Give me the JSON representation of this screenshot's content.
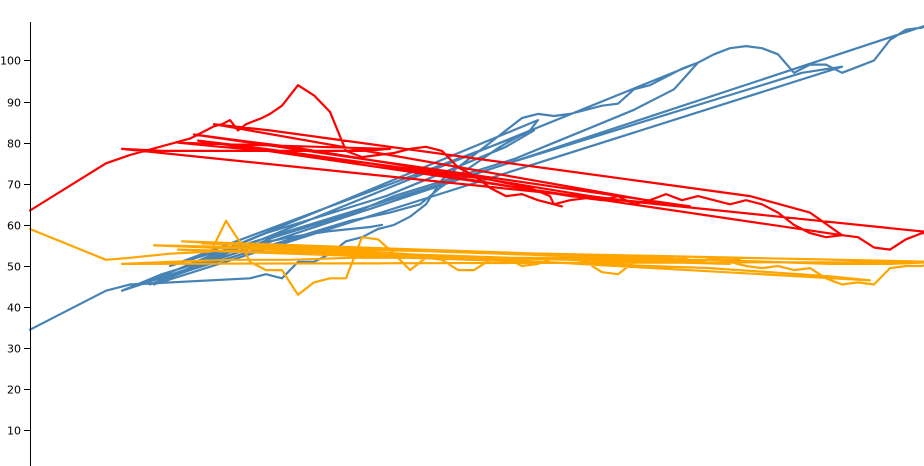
{
  "chart_data": {
    "type": "line",
    "title": "",
    "xlabel": "",
    "ylabel": "",
    "ylim": [
      0,
      110
    ],
    "yticks": [
      10,
      20,
      30,
      40,
      50,
      60,
      70,
      80,
      90,
      100
    ],
    "grid": false,
    "legend": "none",
    "series": [
      {
        "color": "#4682b4",
        "points": [
          [
            0,
            34.5
          ],
          [
            76,
            44
          ],
          [
            100,
            45.5
          ],
          [
            220,
            47
          ],
          [
            236,
            48
          ],
          [
            252,
            47
          ],
          [
            268,
            51
          ],
          [
            284,
            51
          ],
          [
            300,
            53
          ],
          [
            316,
            56
          ],
          [
            332,
            57
          ],
          [
            348,
            59
          ],
          [
            364,
            60
          ],
          [
            380,
            62
          ],
          [
            396,
            65
          ],
          [
            412,
            71
          ],
          [
            428,
            74
          ],
          [
            444,
            77
          ],
          [
            460,
            80
          ],
          [
            476,
            83
          ],
          [
            492,
            86
          ],
          [
            508,
            87
          ],
          [
            524,
            86.5
          ],
          [
            540,
            87
          ],
          [
            556,
            88
          ],
          [
            572,
            89
          ],
          [
            588,
            89.5
          ],
          [
            604,
            93
          ],
          [
            620,
            94
          ],
          [
            636,
            96
          ],
          [
            652,
            98
          ],
          [
            668,
            99.5
          ],
          [
            684,
            101.5
          ],
          [
            700,
            103
          ],
          [
            716,
            103.5
          ],
          [
            732,
            103
          ],
          [
            748,
            101.5
          ],
          [
            764,
            97
          ],
          [
            780,
            99
          ],
          [
            796,
            99
          ],
          [
            812,
            97
          ],
          [
            828,
            98.5
          ],
          [
            844,
            100
          ],
          [
            860,
            105
          ],
          [
            876,
            107.5
          ],
          [
            892,
            108
          ],
          [
            908,
            109.5
          ],
          [
            92,
            44
          ],
          [
            132,
            48
          ],
          [
            172,
            51
          ],
          [
            212,
            55
          ],
          [
            252,
            58
          ],
          [
            292,
            61
          ],
          [
            332,
            64
          ],
          [
            372,
            67
          ],
          [
            412,
            70
          ],
          [
            452,
            73
          ],
          [
            492,
            76
          ],
          [
            532,
            79
          ],
          [
            572,
            82
          ],
          [
            612,
            85
          ],
          [
            652,
            88
          ],
          [
            692,
            91
          ],
          [
            732,
            94
          ],
          [
            772,
            97
          ],
          [
            812,
            98.5
          ],
          [
            124,
            45.5
          ],
          [
            164,
            50
          ],
          [
            204,
            53
          ],
          [
            244,
            57
          ],
          [
            284,
            60
          ],
          [
            324,
            63
          ],
          [
            364,
            67
          ],
          [
            404,
            70
          ],
          [
            444,
            73
          ],
          [
            484,
            76
          ],
          [
            524,
            80
          ],
          [
            564,
            84
          ],
          [
            604,
            88
          ],
          [
            644,
            93
          ],
          [
            668,
            99.5
          ],
          [
            120,
            45.5
          ],
          [
            160,
            49
          ],
          [
            200,
            52
          ],
          [
            240,
            55
          ],
          [
            280,
            58
          ],
          [
            320,
            61
          ],
          [
            360,
            63
          ],
          [
            390,
            65
          ],
          [
            410,
            69
          ],
          [
            440,
            74
          ],
          [
            470,
            79
          ],
          [
            500,
            83
          ],
          [
            508,
            85.5
          ],
          [
            116,
            46
          ],
          [
            156,
            50
          ],
          [
            196,
            54
          ],
          [
            236,
            58
          ],
          [
            276,
            61
          ],
          [
            316,
            64
          ],
          [
            356,
            67
          ],
          [
            396,
            71
          ],
          [
            436,
            75
          ],
          [
            476,
            79
          ],
          [
            504,
            83
          ],
          [
            140,
            50
          ],
          [
            180,
            53
          ],
          [
            220,
            55
          ],
          [
            260,
            57
          ],
          [
            300,
            58.5
          ],
          [
            340,
            59.5
          ],
          [
            352,
            60
          ]
        ]
      },
      {
        "color": "#ff0000",
        "points": [
          [
            0,
            63.5
          ],
          [
            76,
            75
          ],
          [
            100,
            77
          ],
          [
            160,
            81
          ],
          [
            184,
            84
          ],
          [
            192,
            84.5
          ],
          [
            200,
            85.5
          ],
          [
            208,
            83
          ],
          [
            216,
            84.5
          ],
          [
            232,
            86
          ],
          [
            240,
            87
          ],
          [
            252,
            89
          ],
          [
            268,
            94
          ],
          [
            284,
            91.5
          ],
          [
            300,
            87.5
          ],
          [
            316,
            78
          ],
          [
            332,
            76.5
          ],
          [
            348,
            77
          ],
          [
            364,
            77.5
          ],
          [
            380,
            78.5
          ],
          [
            396,
            79
          ],
          [
            412,
            78
          ],
          [
            428,
            74
          ],
          [
            444,
            72
          ],
          [
            460,
            69
          ],
          [
            476,
            67
          ],
          [
            492,
            67.5
          ],
          [
            508,
            66
          ],
          [
            524,
            65
          ],
          [
            540,
            66
          ],
          [
            556,
            66.5
          ],
          [
            572,
            66
          ],
          [
            588,
            67
          ],
          [
            604,
            65
          ],
          [
            620,
            66
          ],
          [
            636,
            67.5
          ],
          [
            652,
            66
          ],
          [
            668,
            67
          ],
          [
            684,
            66
          ],
          [
            700,
            65
          ],
          [
            716,
            66
          ],
          [
            732,
            65
          ],
          [
            748,
            63
          ],
          [
            764,
            60
          ],
          [
            780,
            58
          ],
          [
            796,
            57
          ],
          [
            812,
            57.5
          ],
          [
            828,
            57
          ],
          [
            844,
            54.5
          ],
          [
            860,
            54
          ],
          [
            876,
            56.5
          ],
          [
            892,
            58
          ],
          [
            908,
            58
          ],
          [
            92,
            78.5
          ],
          [
            132,
            78
          ],
          [
            172,
            78
          ],
          [
            212,
            78
          ],
          [
            252,
            78
          ],
          [
            292,
            78
          ],
          [
            332,
            78
          ],
          [
            360,
            78.5
          ],
          [
            148,
            80
          ],
          [
            190,
            79
          ],
          [
            240,
            78
          ],
          [
            290,
            76.5
          ],
          [
            340,
            75
          ],
          [
            390,
            73
          ],
          [
            440,
            71
          ],
          [
            490,
            69
          ],
          [
            540,
            67
          ],
          [
            590,
            66
          ],
          [
            640,
            65
          ],
          [
            660,
            64.5
          ],
          [
            164,
            82
          ],
          [
            210,
            80.5
          ],
          [
            260,
            79
          ],
          [
            310,
            77
          ],
          [
            360,
            75
          ],
          [
            410,
            73
          ],
          [
            460,
            71
          ],
          [
            510,
            69
          ],
          [
            560,
            67
          ],
          [
            610,
            65.5
          ],
          [
            640,
            65
          ],
          [
            184,
            84.5
          ],
          [
            240,
            83
          ],
          [
            300,
            81
          ],
          [
            360,
            79
          ],
          [
            420,
            77
          ],
          [
            480,
            75
          ],
          [
            540,
            73
          ],
          [
            600,
            71
          ],
          [
            660,
            69
          ],
          [
            720,
            67
          ],
          [
            780,
            63
          ],
          [
            812,
            57.5
          ],
          [
            168,
            80.5
          ],
          [
            220,
            79
          ],
          [
            280,
            77
          ],
          [
            340,
            75
          ],
          [
            400,
            73
          ],
          [
            460,
            71
          ],
          [
            500,
            69
          ],
          [
            520,
            67
          ],
          [
            524,
            65
          ],
          [
            532,
            64.5
          ]
        ]
      },
      {
        "color": "#ffa500",
        "points": [
          [
            0,
            59
          ],
          [
            76,
            51.5
          ],
          [
            100,
            52
          ],
          [
            140,
            53
          ],
          [
            180,
            53.5
          ],
          [
            186,
            56
          ],
          [
            196,
            61
          ],
          [
            212,
            55
          ],
          [
            220,
            51
          ],
          [
            236,
            49
          ],
          [
            252,
            49
          ],
          [
            268,
            43
          ],
          [
            284,
            46
          ],
          [
            300,
            47
          ],
          [
            316,
            47
          ],
          [
            332,
            57
          ],
          [
            348,
            56.5
          ],
          [
            364,
            53
          ],
          [
            380,
            49
          ],
          [
            396,
            52
          ],
          [
            412,
            51.5
          ],
          [
            428,
            49
          ],
          [
            444,
            49
          ],
          [
            460,
            51.5
          ],
          [
            476,
            52
          ],
          [
            492,
            50
          ],
          [
            508,
            50.5
          ],
          [
            524,
            52
          ],
          [
            540,
            52
          ],
          [
            556,
            51
          ],
          [
            572,
            48.5
          ],
          [
            588,
            48
          ],
          [
            604,
            51
          ],
          [
            620,
            52
          ],
          [
            636,
            51
          ],
          [
            652,
            52
          ],
          [
            668,
            51
          ],
          [
            684,
            52
          ],
          [
            700,
            51
          ],
          [
            716,
            50
          ],
          [
            732,
            49.5
          ],
          [
            748,
            50
          ],
          [
            764,
            49
          ],
          [
            780,
            49.5
          ],
          [
            796,
            47
          ],
          [
            812,
            45.5
          ],
          [
            828,
            46
          ],
          [
            844,
            45.5
          ],
          [
            860,
            49.5
          ],
          [
            876,
            50
          ],
          [
            892,
            50
          ],
          [
            908,
            51
          ],
          [
            92,
            50.5
          ],
          [
            140,
            51
          ],
          [
            200,
            51.5
          ],
          [
            260,
            51.5
          ],
          [
            320,
            52
          ],
          [
            380,
            52
          ],
          [
            440,
            52
          ],
          [
            500,
            52
          ],
          [
            560,
            52
          ],
          [
            620,
            51.5
          ],
          [
            680,
            51.5
          ],
          [
            740,
            51
          ],
          [
            800,
            50.5
          ],
          [
            860,
            50.5
          ],
          [
            908,
            51
          ],
          [
            124,
            55
          ],
          [
            180,
            54.5
          ],
          [
            240,
            54
          ],
          [
            300,
            53.5
          ],
          [
            360,
            53
          ],
          [
            420,
            52.5
          ],
          [
            480,
            52
          ],
          [
            540,
            51.5
          ],
          [
            600,
            51.5
          ],
          [
            660,
            51
          ],
          [
            700,
            50.5
          ],
          [
            148,
            54
          ],
          [
            200,
            53.5
          ],
          [
            260,
            53
          ],
          [
            320,
            52.5
          ],
          [
            380,
            52
          ],
          [
            440,
            51.5
          ],
          [
            500,
            51
          ],
          [
            560,
            50.5
          ],
          [
            620,
            50
          ],
          [
            680,
            49.5
          ],
          [
            740,
            48.5
          ],
          [
            800,
            47.5
          ],
          [
            840,
            46.5
          ],
          [
            152,
            56
          ],
          [
            210,
            55.5
          ],
          [
            270,
            55
          ],
          [
            330,
            54.5
          ],
          [
            390,
            54
          ],
          [
            450,
            53.5
          ],
          [
            510,
            53
          ],
          [
            570,
            52.5
          ],
          [
            630,
            52
          ],
          [
            660,
            51.5
          ],
          [
            172,
            55.5
          ],
          [
            230,
            55
          ],
          [
            290,
            54.5
          ],
          [
            350,
            54
          ],
          [
            410,
            53.5
          ],
          [
            470,
            53
          ],
          [
            530,
            52.5
          ],
          [
            590,
            52
          ],
          [
            650,
            51.5
          ],
          [
            690,
            51.5
          ],
          [
            710,
            51.5
          ]
        ]
      }
    ]
  }
}
